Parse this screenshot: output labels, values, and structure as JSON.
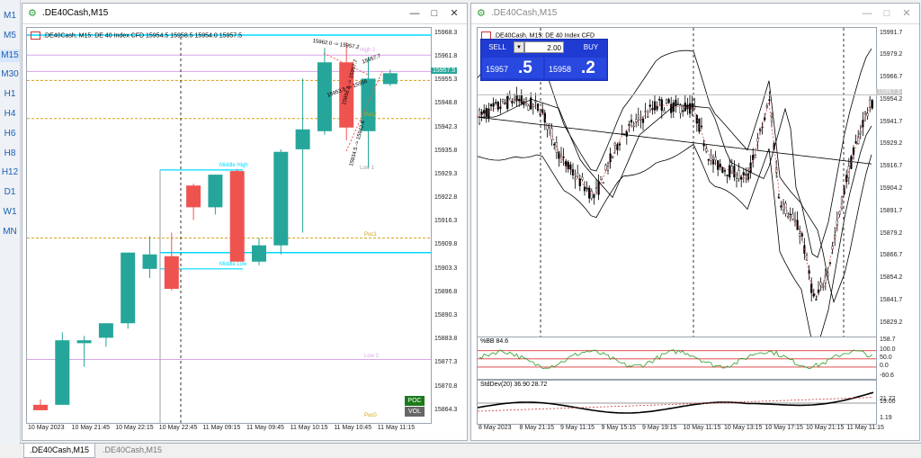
{
  "timeframes": [
    "M1",
    "M5",
    "M15",
    "M30",
    "H1",
    "H4",
    "H6",
    "H8",
    "H12",
    "D1",
    "W1",
    "MN"
  ],
  "active_timeframe": "M15",
  "left_window": {
    "title": ".DE40Cash,M15",
    "header": ".DE40Cash, M15:  DE 40 Index CFD  15954.5 15958.5 15954.0 15957.5",
    "price_labels": [
      "15968.3",
      "15961.8",
      "15955.3",
      "15948.8",
      "15942.3",
      "15935.8",
      "15929.3",
      "15922.8",
      "15916.3",
      "15909.8",
      "15903.3",
      "15896.8",
      "15890.3",
      "15883.8",
      "15877.3",
      "15870.8",
      "15864.3"
    ],
    "current_price": "15957.5",
    "time_labels": [
      "10 May 2023",
      "10 May 21:45",
      "10 May 22:15",
      "10 May 22:45",
      "11 May 09:15",
      "11 May 09:45",
      "11 May 10:15",
      "11 May 10:45",
      "11 May 11:15"
    ],
    "annotations": {
      "high_label": "High 2",
      "pocket1": "Poc1",
      "pocket2": "Poc2",
      "low1": "Low 1",
      "low2": "Low 2",
      "poc0": "Poc0",
      "mid_high": "Middle High",
      "mid_low": "Middle Low",
      "fib1": "15962.0 -> 15957.2",
      "fib2": "15953.5 -> 15956",
      "fib3": "15957.7",
      "fib4": "15956.8 -> 15957.7",
      "fib5": "15934.5 -> 15942.6"
    },
    "poc_badge": "POC",
    "vol_badge": "VOL",
    "colors": {
      "bull": "#26a69a",
      "bear": "#ef5350",
      "cyan": "#00d8ff",
      "magenta": "#d9a6e6",
      "orange": "#d4a017",
      "gray": "#9aa0a6"
    },
    "candles": [
      {
        "o": 15866.0,
        "h": 15867.5,
        "l": 15864.5,
        "c": 15864.5
      },
      {
        "o": 15866.0,
        "h": 15886.0,
        "l": 15866.0,
        "c": 15883.8
      },
      {
        "o": 15883.0,
        "h": 15885.0,
        "l": 15876.5,
        "c": 15883.8
      },
      {
        "o": 15884.5,
        "h": 15888.5,
        "l": 15882.0,
        "c": 15888.5
      },
      {
        "o": 15888.5,
        "h": 15908.0,
        "l": 15887.0,
        "c": 15908.0
      },
      {
        "o": 15903.5,
        "h": 15912.5,
        "l": 15901.0,
        "c": 15907.5
      },
      {
        "o": 15907.0,
        "h": 15913.5,
        "l": 15897.5,
        "c": 15898.0
      },
      {
        "o": 15926.5,
        "h": 15927.0,
        "l": 15917.0,
        "c": 15920.5
      },
      {
        "o": 15920.5,
        "h": 15929.5,
        "l": 15918.5,
        "c": 15929.5
      },
      {
        "o": 15930.5,
        "h": 15931.0,
        "l": 15905.5,
        "c": 15905.5
      },
      {
        "o": 15905.5,
        "h": 15912.0,
        "l": 15904.5,
        "c": 15910.0
      },
      {
        "o": 15910.0,
        "h": 15936.5,
        "l": 15907.5,
        "c": 15935.8
      },
      {
        "o": 15936.5,
        "h": 15956.0,
        "l": 15913.5,
        "c": 15942.0
      },
      {
        "o": 15941.5,
        "h": 15964.5,
        "l": 15940.5,
        "c": 15960.5
      },
      {
        "o": 15960.5,
        "h": 15966.0,
        "l": 15939.0,
        "c": 15942.5
      },
      {
        "o": 15941.5,
        "h": 15962.0,
        "l": 15931.5,
        "c": 15956.0
      },
      {
        "o": 15954.5,
        "h": 15958.5,
        "l": 15954.0,
        "c": 15957.5
      }
    ]
  },
  "right_window": {
    "title": ".DE40Cash,M15",
    "header": ".DE40Cash, M15:  DE 40 Index CFD",
    "sell_label": "SELL",
    "buy_label": "BUY",
    "lot": "2.00",
    "sell_big": "15957",
    "sell_frac": ".5",
    "buy_big": "15958",
    "buy_frac": ".2",
    "price_labels": [
      "15991.7",
      "15979.2",
      "15966.7",
      "15954.2",
      "15941.7",
      "15929.2",
      "15916.7",
      "15904.2",
      "15891.7",
      "15879.2",
      "15866.7",
      "15854.2",
      "15841.7",
      "15829.2"
    ],
    "current_price": "15957.5",
    "bb_header": "%BB 84.6",
    "bb_labels": [
      "158.7",
      "100.0",
      "50.0",
      "0.0",
      "-60.6"
    ],
    "sd_header": "StdDev(20) 36.90 28.72",
    "sd_labels": [
      "21.72",
      "19.00",
      "1.19"
    ],
    "time_labels": [
      "8 May 2023",
      "8 May 21:15",
      "9 May 11:15",
      "9 May 15:15",
      "9 May 19:15",
      "10 May 11:15",
      "10 May 13:15",
      "10 May 17:15",
      "10 May 21:15",
      "11 May 11:15"
    ]
  },
  "tabs": [
    ".DE40Cash,M15",
    ".DE40Cash,M15"
  ]
}
